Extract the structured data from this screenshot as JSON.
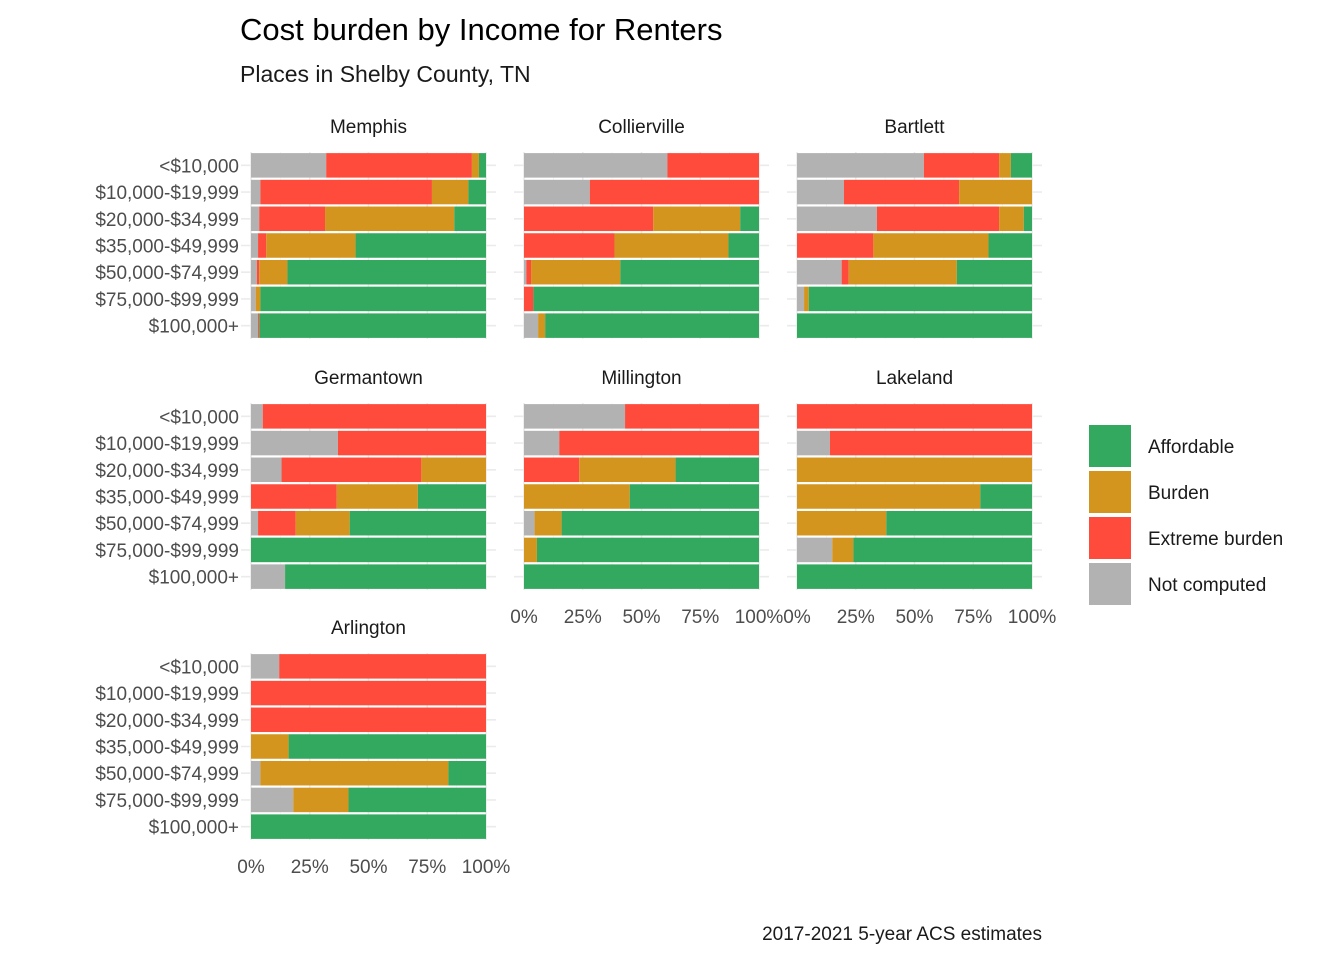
{
  "chart_data": {
    "type": "bar",
    "orientation": "horizontal",
    "stacked": "percent",
    "title": "Cost burden by Income for Renters",
    "subtitle": "Places in Shelby County, TN",
    "caption": "2017-2021 5-year ACS estimates",
    "xlabel": "",
    "ylabel": "",
    "xlim": [
      0,
      1
    ],
    "x_tick_labels": [
      "0%",
      "25%",
      "50%",
      "75%",
      "100%"
    ],
    "x_tick_values": [
      0,
      0.25,
      0.5,
      0.75,
      1
    ],
    "categories": [
      "<$10,000",
      "$10,000-$19,999",
      "$20,000-$34,999",
      "$35,000-$49,999",
      "$50,000-$74,999",
      "$75,000-$99,999",
      "$100,000+"
    ],
    "legend": {
      "position": "right",
      "entries": [
        {
          "name": "Affordable",
          "color": "#33a85f"
        },
        {
          "name": "Burden",
          "color": "#d4951f"
        },
        {
          "name": "Extreme burden",
          "color": "#ff4b3b"
        },
        {
          "name": "Not computed",
          "color": "#b2b2b2"
        }
      ]
    },
    "stack_order": [
      "Not computed",
      "Extreme burden",
      "Burden",
      "Affordable"
    ],
    "grid": true,
    "panels": [
      {
        "place": "Memphis",
        "values": {
          "Not computed": [
            0.32,
            0.04,
            0.035,
            0.03,
            0.025,
            0.02,
            0.03
          ],
          "Extreme burden": [
            0.62,
            0.73,
            0.28,
            0.035,
            0.01,
            0.0,
            0.005
          ],
          "Burden": [
            0.03,
            0.155,
            0.55,
            0.38,
            0.12,
            0.02,
            0.0
          ],
          "Affordable": [
            0.03,
            0.075,
            0.135,
            0.555,
            0.845,
            0.96,
            0.965
          ]
        }
      },
      {
        "place": "Collierville",
        "values": {
          "Not computed": [
            0.61,
            0.28,
            0.0,
            0.0,
            0.01,
            0.0,
            0.06
          ],
          "Extreme burden": [
            0.39,
            0.72,
            0.55,
            0.385,
            0.02,
            0.04,
            0.0
          ],
          "Burden": [
            0.0,
            0.0,
            0.37,
            0.485,
            0.38,
            0.0,
            0.03
          ],
          "Affordable": [
            0.0,
            0.0,
            0.08,
            0.13,
            0.59,
            0.96,
            0.91
          ]
        }
      },
      {
        "place": "Bartlett",
        "values": {
          "Not computed": [
            0.54,
            0.2,
            0.34,
            0.0,
            0.19,
            0.03,
            0.0
          ],
          "Extreme burden": [
            0.32,
            0.49,
            0.52,
            0.325,
            0.03,
            0.0,
            0.0
          ],
          "Burden": [
            0.05,
            0.31,
            0.105,
            0.49,
            0.46,
            0.02,
            0.0
          ],
          "Affordable": [
            0.09,
            0.0,
            0.035,
            0.185,
            0.32,
            0.95,
            1.0
          ]
        }
      },
      {
        "place": "Germantown",
        "values": {
          "Not computed": [
            0.05,
            0.37,
            0.13,
            0.0,
            0.03,
            0.0,
            0.145
          ],
          "Extreme burden": [
            0.95,
            0.63,
            0.595,
            0.365,
            0.16,
            0.0,
            0.0
          ],
          "Burden": [
            0.0,
            0.0,
            0.275,
            0.345,
            0.23,
            0.0,
            0.0
          ],
          "Affordable": [
            0.0,
            0.0,
            0.0,
            0.29,
            0.58,
            1.0,
            0.855
          ]
        }
      },
      {
        "place": "Millington",
        "values": {
          "Not computed": [
            0.43,
            0.15,
            0.0,
            0.0,
            0.045,
            0.0,
            0.0
          ],
          "Extreme burden": [
            0.57,
            0.85,
            0.235,
            0.0,
            0.0,
            0.0,
            0.0
          ],
          "Burden": [
            0.0,
            0.0,
            0.41,
            0.45,
            0.115,
            0.055,
            0.0
          ],
          "Affordable": [
            0.0,
            0.0,
            0.355,
            0.55,
            0.84,
            0.945,
            1.0
          ]
        }
      },
      {
        "place": "Lakeland",
        "values": {
          "Not computed": [
            0.0,
            0.14,
            0.0,
            0.0,
            0.0,
            0.15,
            0.0
          ],
          "Extreme burden": [
            1.0,
            0.86,
            0.0,
            0.0,
            0.0,
            0.0,
            0.0
          ],
          "Burden": [
            0.0,
            0.0,
            1.0,
            0.78,
            0.38,
            0.09,
            0.0
          ],
          "Affordable": [
            0.0,
            0.0,
            0.0,
            0.22,
            0.62,
            0.76,
            1.0
          ]
        }
      },
      {
        "place": "Arlington",
        "values": {
          "Not computed": [
            0.12,
            0.0,
            0.0,
            0.0,
            0.04,
            0.18,
            0.0
          ],
          "Extreme burden": [
            0.88,
            1.0,
            1.0,
            0.0,
            0.0,
            0.0,
            0.0
          ],
          "Burden": [
            0.0,
            0.0,
            0.0,
            0.16,
            0.8,
            0.235,
            0.0
          ],
          "Affordable": [
            0.0,
            0.0,
            0.0,
            0.84,
            0.16,
            0.585,
            1.0
          ]
        }
      }
    ]
  }
}
